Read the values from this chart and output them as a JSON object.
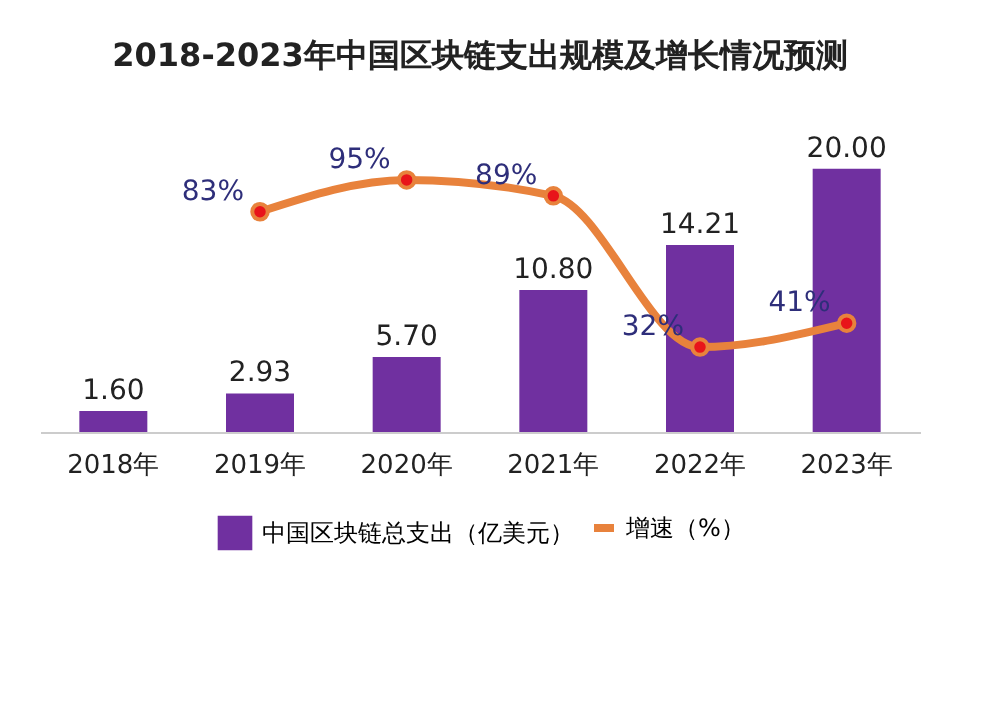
{
  "chart_data": {
    "type": "bar",
    "title": "2018-2023年中国区块链支出规模及增长情况预测",
    "categories": [
      "2018年",
      "2019年",
      "2020年",
      "2021年",
      "2022年",
      "2023年"
    ],
    "series": [
      {
        "name": "中国区块链总支出（亿美元）",
        "color": "#7030a0",
        "values": [
          1.6,
          2.93,
          5.7,
          10.8,
          14.21,
          20.0
        ],
        "value_labels": [
          "1.60",
          "2.93",
          "5.70",
          "10.80",
          "14.21",
          "20.00"
        ]
      },
      {
        "name": "增速（%）",
        "type": "line",
        "axis": "y2",
        "color": "#e8823c",
        "values": [
          null,
          83,
          95,
          89,
          32,
          41
        ],
        "value_labels": [
          null,
          "83%",
          "95%",
          "89%",
          "32%",
          "41%"
        ]
      }
    ],
    "legend": "bottom",
    "marker": "circle"
  }
}
